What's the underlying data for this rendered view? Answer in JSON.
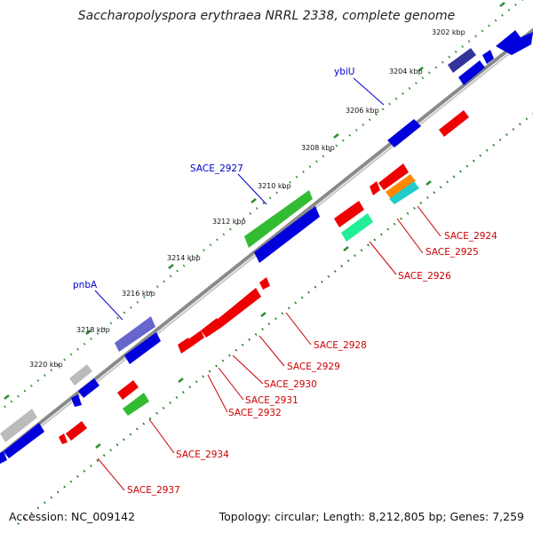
{
  "title": "Saccharopolyspora erythraea NRRL 2338, complete genome",
  "footer": {
    "accession": "Accession: NC_009142",
    "summary": "Topology: circular; Length: 8,212,805 bp; Genes: 7,259"
  },
  "colors": {
    "backbone": "#9a9a9a",
    "tick_plus": "#2f8f2f",
    "tick_minus": "#1e7a1e",
    "plus_label": "#0000cc",
    "minus_label": "#cc0000"
  },
  "scale_labels": [
    "3202 kbp",
    "3204 kbp",
    "3206 kbp",
    "3208 kbp",
    "3210 kbp",
    "3212 kbp",
    "3214 kbp",
    "3216 kbp",
    "3218 kbp",
    "3220 kbp"
  ],
  "plus_gene_labels": [
    "ybiU",
    "SACE_2927",
    "pnbA"
  ],
  "minus_gene_labels": [
    "SACE_2924",
    "SACE_2925",
    "SACE_2926",
    "SACE_2928",
    "SACE_2929",
    "SACE_2930",
    "SACE_2931",
    "SACE_2932",
    "SACE_2934",
    "SACE_2937"
  ]
}
